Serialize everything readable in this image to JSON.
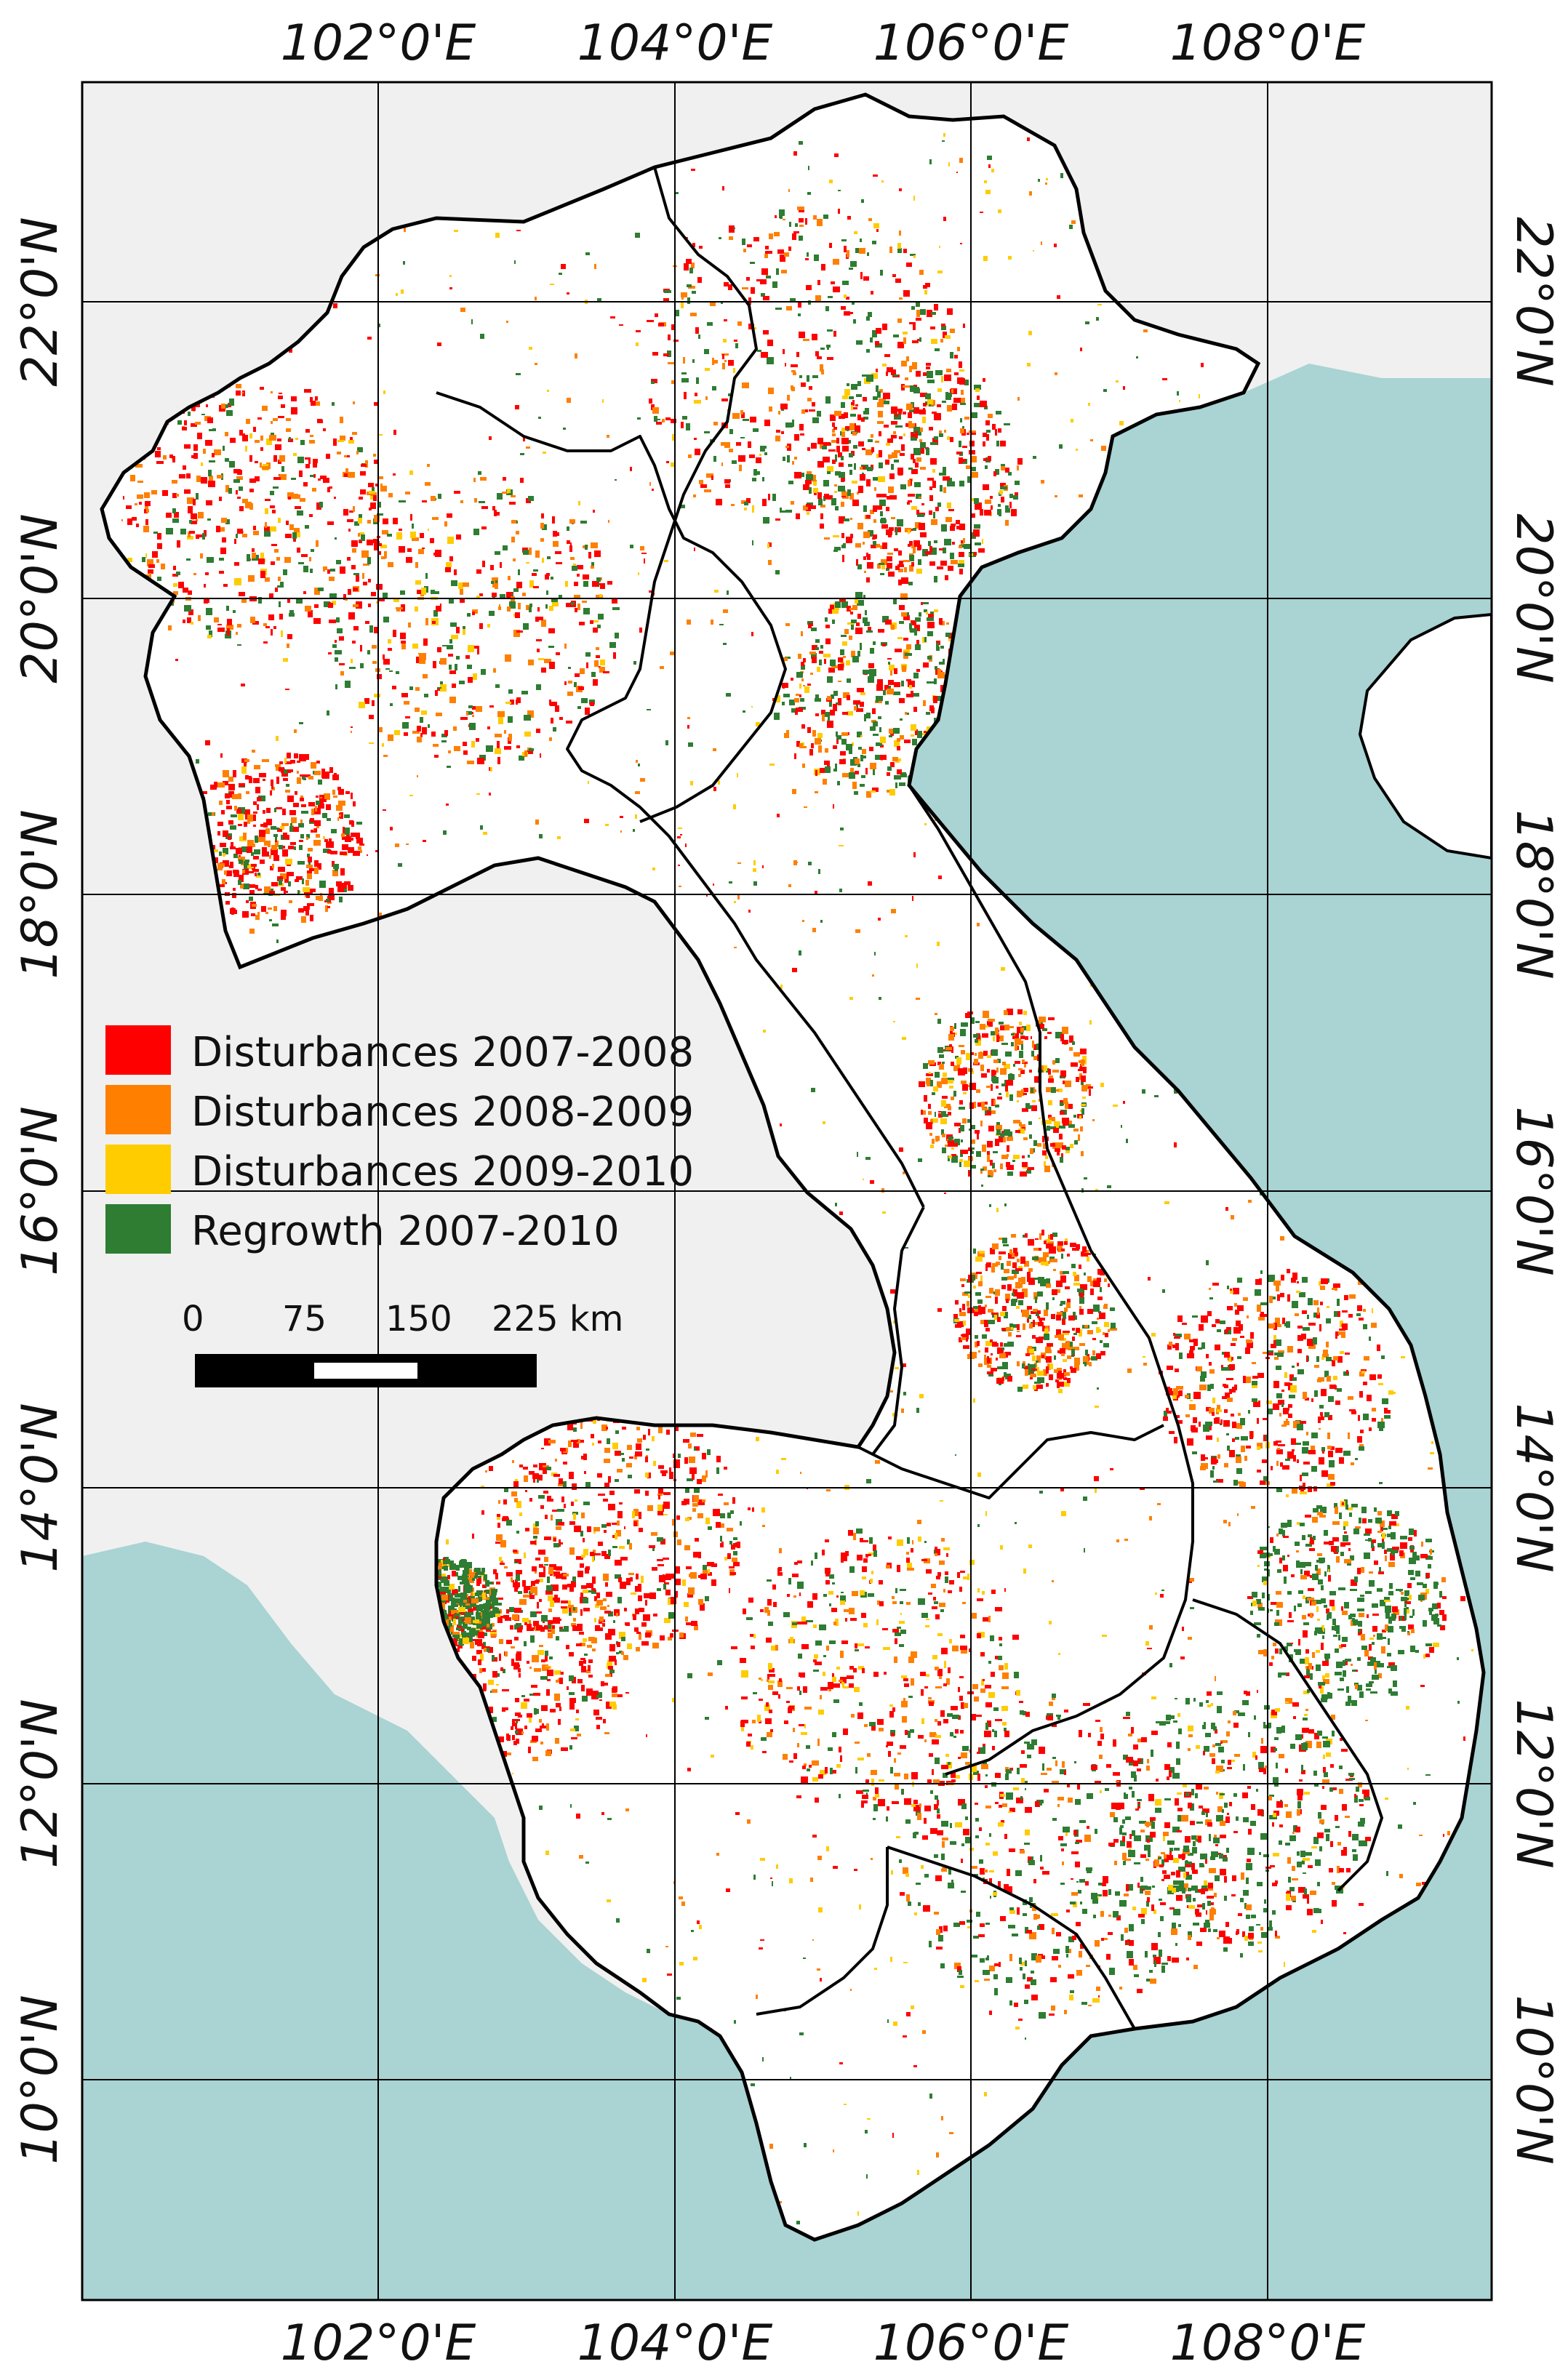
{
  "colors": {
    "background": "#f0f0f0",
    "sea": "#aad3d3",
    "land": "#ffffff",
    "border": "#000000",
    "disturbance_2007_2008": "#ff0000",
    "disturbance_2008_2009": "#ff8000",
    "disturbance_2009_2010": "#ffcc00",
    "regrowth": "#2e7d32"
  },
  "lon_labels": [
    "102°0'E",
    "104°0'E",
    "106°0'E",
    "108°0'E"
  ],
  "lat_labels": [
    "22°0'N",
    "20°0'N",
    "18°0'N",
    "16°0'N",
    "14°0'N",
    "12°0'N",
    "10°0'N"
  ],
  "legend": [
    {
      "label": "Disturbances 2007-2008",
      "color": "#ff0000"
    },
    {
      "label": "Disturbances 2008-2009",
      "color": "#ff8000"
    },
    {
      "label": "Disturbances 2009-2010",
      "color": "#ffcc00"
    },
    {
      "label": "Regrowth 2007-2010",
      "color": "#2e7d32"
    }
  ],
  "scale_bar": {
    "ticks": [
      "0",
      "75",
      "150",
      "225 km"
    ]
  }
}
